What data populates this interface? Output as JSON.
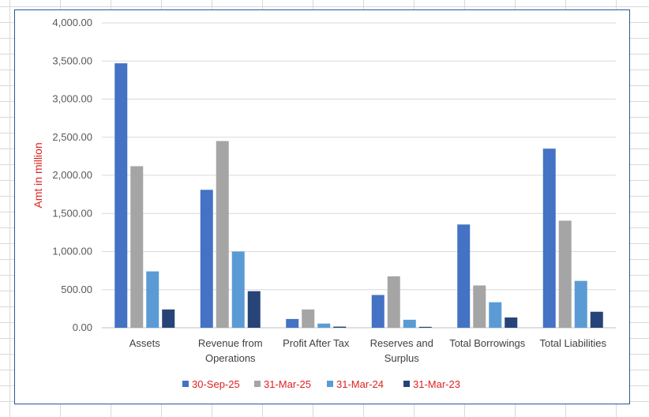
{
  "chart_data": {
    "type": "bar",
    "categories": [
      "Assets",
      "Revenue from Operations",
      "Profit After Tax",
      "Reserves and Surplus",
      "Total Borrowings",
      "Total Liabilities"
    ],
    "category_lines": [
      [
        "Assets"
      ],
      [
        "Revenue from",
        "Operations"
      ],
      [
        "Profit After Tax"
      ],
      [
        "Reserves and",
        "Surplus"
      ],
      [
        "Total Borrowings"
      ],
      [
        "Total Liabilities"
      ]
    ],
    "series": [
      {
        "name": "30-Sep-25",
        "color": "#4472c4",
        "values": [
          3470,
          1810,
          115,
          430,
          1355,
          2350
        ]
      },
      {
        "name": "31-Mar-25",
        "color": "#a5a5a5",
        "values": [
          2120,
          2450,
          240,
          675,
          555,
          1405
        ]
      },
      {
        "name": "31-Mar-24",
        "color": "#5b9bd5",
        "values": [
          740,
          1000,
          55,
          105,
          335,
          615
        ]
      },
      {
        "name": "31-Mar-23",
        "color": "#264478",
        "values": [
          240,
          480,
          15,
          12,
          135,
          210
        ]
      }
    ],
    "ylabel": "Amt in million",
    "ylim": [
      0,
      4000
    ],
    "yticks": [
      "0.00",
      "500.00",
      "1,000.00",
      "1,500.00",
      "2,000.00",
      "2,500.00",
      "3,000.00",
      "3,500.00",
      "4,000.00"
    ],
    "ytick_values": [
      0,
      500,
      1000,
      1500,
      2000,
      2500,
      3000,
      3500,
      4000
    ],
    "grid": true,
    "legend_position": "bottom"
  }
}
